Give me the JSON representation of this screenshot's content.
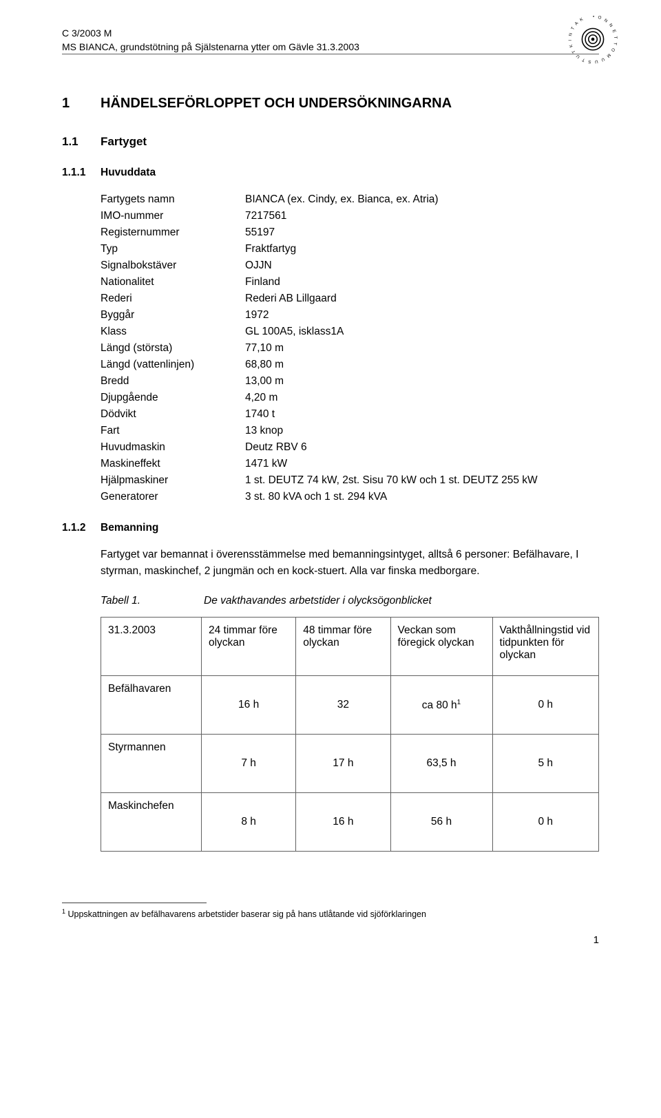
{
  "header": {
    "ref": "C 3/2003 M",
    "title": "MS BIANCA, grundstötning på Själstenarna ytter om Gävle 31.3.2003"
  },
  "h1": {
    "num": "1",
    "text": "HÄNDELSEFÖRLOPPET OCH UNDERSÖKNINGARNA"
  },
  "h2": {
    "num": "1.1",
    "text": "Fartyget"
  },
  "h3a": {
    "num": "1.1.1",
    "text": "Huvuddata"
  },
  "data": [
    {
      "label": "Fartygets namn",
      "value": "BIANCA (ex. Cindy, ex. Bianca, ex. Atria)"
    },
    {
      "label": "IMO-nummer",
      "value": "7217561"
    },
    {
      "label": "Registernummer",
      "value": "55197"
    },
    {
      "label": "Typ",
      "value": "Fraktfartyg"
    },
    {
      "label": "Signalbokstäver",
      "value": "OJJN"
    },
    {
      "label": "Nationalitet",
      "value": "Finland"
    },
    {
      "label": "Rederi",
      "value": "Rederi AB Lillgaard"
    },
    {
      "label": "Byggår",
      "value": "1972"
    },
    {
      "label": "Klass",
      "value": "GL 100A5, isklass1A"
    },
    {
      "label": "Längd (största)",
      "value": "77,10 m"
    },
    {
      "label": "Längd (vattenlinjen)",
      "value": "68,80 m"
    },
    {
      "label": "Bredd",
      "value": "13,00 m"
    },
    {
      "label": "Djupgående",
      "value": "4,20 m"
    },
    {
      "label": "Dödvikt",
      "value": "1740 t"
    },
    {
      "label": "Fart",
      "value": "13 knop"
    },
    {
      "label": "Huvudmaskin",
      "value": "Deutz RBV 6"
    },
    {
      "label": "Maskineffekt",
      "value": "1471 kW"
    },
    {
      "label": "Hjälpmaskiner",
      "value": "1 st. DEUTZ 74 kW, 2st. Sisu 70 kW och 1 st. DEUTZ 255 kW"
    },
    {
      "label": "Generatorer",
      "value": "3 st. 80 kVA och 1 st. 294 kVA"
    }
  ],
  "h3b": {
    "num": "1.1.2",
    "text": "Bemanning"
  },
  "para": "Fartyget var bemannat i överensstämmelse med bemanningsintyget, alltså 6 personer: Befälhavare, I styrman, maskinchef, 2 jungmän och en kock-stuert. Alla var finska medborgare.",
  "tableCaption": {
    "label": "Tabell 1.",
    "text": "De vakthavandes arbetstider i olycksögonblicket"
  },
  "table": {
    "headRow": [
      "31.3.2003",
      "24 timmar före olyckan",
      "48 timmar före olyckan",
      "Veckan som föregick olyckan",
      "Vakthållningstid vid tidpunkten för olyckan"
    ],
    "rows": [
      {
        "label": "Befälhavaren",
        "c1": "16 h",
        "c2": "32",
        "c3": "ca 80 h",
        "c3_sup": "1",
        "c4": "0 h"
      },
      {
        "label": "Styrmannen",
        "c1": "7 h",
        "c2": "17 h",
        "c3": "63,5 h",
        "c3_sup": "",
        "c4": "5 h"
      },
      {
        "label": "Maskinchefen",
        "c1": "8 h",
        "c2": "16 h",
        "c3": "56 h",
        "c3_sup": "",
        "c4": "0 h"
      }
    ]
  },
  "footnote": {
    "marker": "1",
    "text": " Uppskattningen av befälhavarens arbetstider baserar sig på hans utlåtande vid sjöförklaringen"
  },
  "pageNum": "1"
}
